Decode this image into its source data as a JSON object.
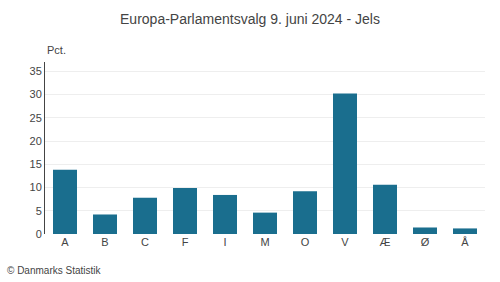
{
  "chart_data": {
    "type": "bar",
    "title": "Europa-Parlamentsvalg 9. juni 2024 - Jels",
    "categories": [
      "A",
      "B",
      "C",
      "F",
      "I",
      "M",
      "O",
      "V",
      "Æ",
      "Ø",
      "Å"
    ],
    "values": [
      13.8,
      4.2,
      7.8,
      9.9,
      8.4,
      4.6,
      9.2,
      30.2,
      10.6,
      1.4,
      1.2
    ],
    "color": "#1a6e8e",
    "ylabel": "Pct.",
    "ylim": [
      0,
      37
    ],
    "yticks": [
      0,
      5,
      10,
      15,
      20,
      25,
      30,
      35
    ],
    "grid": true,
    "annotations": [
      "© Danmarks Statistik"
    ]
  }
}
